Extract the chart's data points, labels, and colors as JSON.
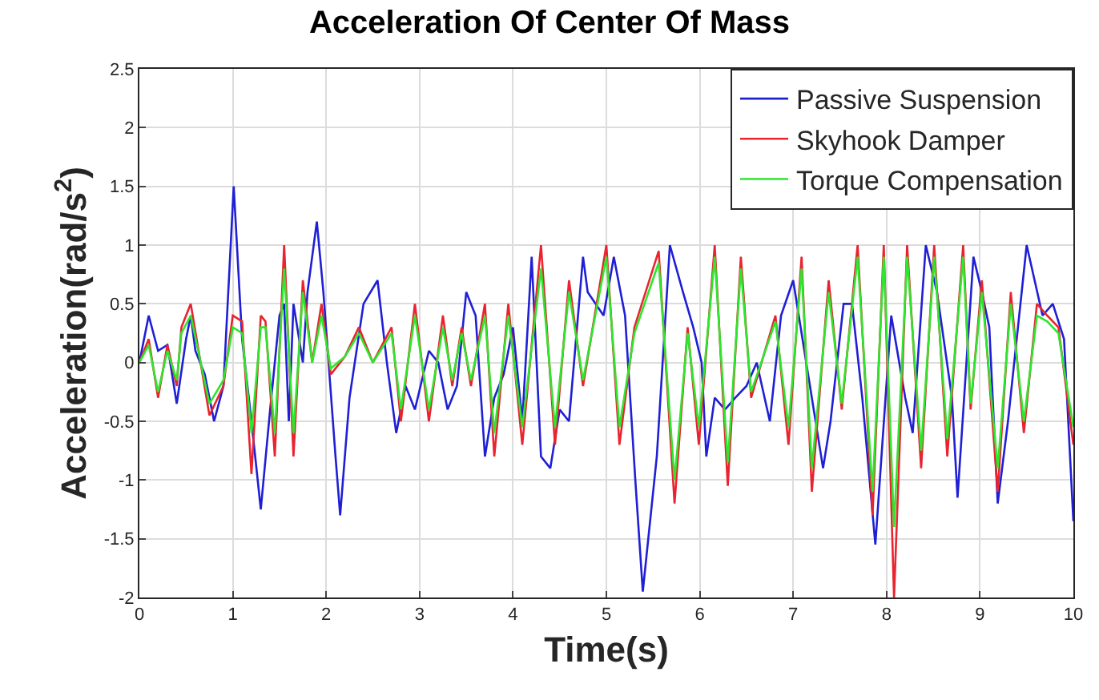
{
  "chart_data": {
    "type": "line",
    "title": "Acceleration Of Center Of Mass",
    "xlabel": "Time(s)",
    "ylabel": "Acceleration(rad/s$^{2}$)",
    "xlim": [
      0,
      10
    ],
    "ylim": [
      -2,
      2.5
    ],
    "xticks": [
      0,
      1,
      2,
      3,
      4,
      5,
      6,
      7,
      8,
      9,
      10
    ],
    "yticks": [
      -2,
      -1.5,
      -1,
      -0.5,
      0,
      0.5,
      1,
      1.5,
      2,
      2.5
    ],
    "grid": true,
    "legend": "top right",
    "line_style": "solid",
    "marker": "none",
    "series": [
      {
        "name": "Passive Suspension",
        "color": "#1f1fd6",
        "x": [
          0,
          0.1,
          0.2,
          0.3,
          0.4,
          0.5,
          0.55,
          0.6,
          0.7,
          0.8,
          0.9,
          1.01,
          1.1,
          1.2,
          1.3,
          1.4,
          1.5,
          1.55,
          1.6,
          1.65,
          1.75,
          1.8,
          1.9,
          1.97,
          2.1,
          2.15,
          2.25,
          2.4,
          2.55,
          2.65,
          2.75,
          2.85,
          2.95,
          3.1,
          3.2,
          3.3,
          3.4,
          3.5,
          3.6,
          3.7,
          3.8,
          3.9,
          4.0,
          4.1,
          4.2,
          4.3,
          4.4,
          4.5,
          4.6,
          4.75,
          4.8,
          4.97,
          5.08,
          5.2,
          5.31,
          5.39,
          5.54,
          5.68,
          5.82,
          5.93,
          6.02,
          6.07,
          6.16,
          6.27,
          6.38,
          6.5,
          6.61,
          6.75,
          6.87,
          7.0,
          7.18,
          7.32,
          7.4,
          7.54,
          7.63,
          7.74,
          7.88,
          8.05,
          8.2,
          8.28,
          8.42,
          8.54,
          8.7,
          8.76,
          8.93,
          9.02,
          9.1,
          9.19,
          9.3,
          9.5,
          9.67,
          9.78,
          9.9,
          10
        ],
        "values": [
          0,
          0.4,
          0.1,
          0.15,
          -0.35,
          0.2,
          0.4,
          0.1,
          -0.1,
          -0.5,
          -0.2,
          1.5,
          0.2,
          -0.5,
          -1.25,
          -0.4,
          0.4,
          0.5,
          -0.5,
          0.5,
          0,
          0.6,
          1.2,
          0.6,
          -0.8,
          -1.3,
          -0.3,
          0.5,
          0.7,
          0,
          -0.6,
          -0.2,
          -0.4,
          0.1,
          0,
          -0.4,
          -0.2,
          0.6,
          0.4,
          -0.8,
          -0.3,
          -0.1,
          0.3,
          -0.5,
          0.9,
          -0.8,
          -0.9,
          -0.4,
          -0.5,
          0.9,
          0.6,
          0.4,
          0.9,
          0.4,
          -1.0,
          -1.95,
          -0.8,
          1.0,
          0.6,
          0.3,
          0,
          -0.8,
          -0.3,
          -0.4,
          -0.3,
          -0.2,
          0,
          -0.5,
          0.4,
          0.7,
          -0.2,
          -0.9,
          -0.5,
          0.5,
          0.5,
          -0.3,
          -1.55,
          0.4,
          -0.3,
          -0.6,
          1.0,
          0.6,
          -0.3,
          -1.15,
          0.9,
          0.6,
          0.3,
          -1.2,
          -0.5,
          1.0,
          0.4,
          0.5,
          0.2,
          -1.35
        ]
      },
      {
        "name": "Skyhook Damper",
        "color": "#e8242f",
        "x": [
          0,
          0.1,
          0.2,
          0.3,
          0.4,
          0.45,
          0.55,
          0.75,
          0.9,
          1.0,
          1.1,
          1.2,
          1.3,
          1.35,
          1.45,
          1.55,
          1.65,
          1.75,
          1.85,
          1.95,
          2.05,
          2.2,
          2.35,
          2.5,
          2.7,
          2.8,
          2.95,
          3.1,
          3.25,
          3.35,
          3.45,
          3.55,
          3.7,
          3.8,
          3.95,
          4.1,
          4.3,
          4.45,
          4.6,
          4.75,
          5.0,
          5.14,
          5.3,
          5.56,
          5.73,
          5.87,
          5.99,
          6.16,
          6.3,
          6.44,
          6.55,
          6.81,
          6.95,
          7.09,
          7.2,
          7.38,
          7.52,
          7.69,
          7.85,
          7.97,
          8.08,
          8.22,
          8.37,
          8.51,
          8.65,
          8.82,
          8.9,
          9.02,
          9.19,
          9.33,
          9.47,
          9.61,
          9.72,
          9.84,
          10
        ],
        "values": [
          0,
          0.2,
          -0.3,
          0.15,
          -0.2,
          0.3,
          0.5,
          -0.45,
          -0.2,
          0.4,
          0.35,
          -0.95,
          0.4,
          0.35,
          -0.8,
          1.0,
          -0.8,
          0.7,
          0,
          0.5,
          -0.1,
          0.05,
          0.3,
          0,
          0.3,
          -0.5,
          0.5,
          -0.5,
          0.4,
          -0.2,
          0.3,
          -0.2,
          0.5,
          -0.8,
          0.5,
          -0.7,
          1.0,
          -0.7,
          0.7,
          -0.2,
          1.0,
          -0.7,
          0.3,
          0.95,
          -1.2,
          0.3,
          -0.7,
          1.0,
          -1.05,
          0.9,
          -0.3,
          0.4,
          -0.7,
          0.9,
          -1.1,
          0.7,
          -0.4,
          1.0,
          -1.3,
          1.0,
          -2.0,
          1.0,
          -0.9,
          1.0,
          -0.8,
          1.0,
          -0.4,
          0.7,
          -1.1,
          0.6,
          -0.6,
          0.5,
          0.4,
          0.3,
          -0.7
        ]
      },
      {
        "name": "Torque Compensation",
        "color": "#2ee62e",
        "x": [
          0,
          0.1,
          0.2,
          0.3,
          0.4,
          0.45,
          0.55,
          0.75,
          0.9,
          1.0,
          1.1,
          1.2,
          1.3,
          1.35,
          1.45,
          1.55,
          1.65,
          1.75,
          1.85,
          1.95,
          2.05,
          2.2,
          2.35,
          2.5,
          2.7,
          2.8,
          2.95,
          3.1,
          3.25,
          3.35,
          3.45,
          3.55,
          3.7,
          3.8,
          3.95,
          4.1,
          4.3,
          4.45,
          4.6,
          4.75,
          5.0,
          5.14,
          5.3,
          5.56,
          5.73,
          5.87,
          5.99,
          6.16,
          6.3,
          6.44,
          6.55,
          6.81,
          6.95,
          7.09,
          7.2,
          7.38,
          7.52,
          7.69,
          7.85,
          7.97,
          8.08,
          8.22,
          8.37,
          8.51,
          8.65,
          8.82,
          8.9,
          9.02,
          9.19,
          9.33,
          9.47,
          9.61,
          9.72,
          9.84,
          10
        ],
        "values": [
          0,
          0.15,
          -0.25,
          0.1,
          -0.15,
          0.25,
          0.4,
          -0.35,
          -0.15,
          0.3,
          0.25,
          -0.6,
          0.3,
          0.3,
          -0.6,
          0.8,
          -0.6,
          0.6,
          0,
          0.4,
          -0.05,
          0.05,
          0.25,
          0,
          0.25,
          -0.4,
          0.4,
          -0.4,
          0.3,
          -0.15,
          0.25,
          -0.15,
          0.4,
          -0.6,
          0.4,
          -0.55,
          0.8,
          -0.55,
          0.6,
          -0.15,
          0.9,
          -0.55,
          0.25,
          0.85,
          -1.0,
          0.25,
          -0.55,
          0.9,
          -0.85,
          0.8,
          -0.25,
          0.35,
          -0.55,
          0.8,
          -0.9,
          0.6,
          -0.35,
          0.9,
          -1.1,
          0.9,
          -1.4,
          0.9,
          -0.75,
          0.9,
          -0.65,
          0.9,
          -0.35,
          0.6,
          -0.9,
          0.5,
          -0.5,
          0.4,
          0.35,
          0.25,
          -0.55
        ]
      }
    ]
  }
}
